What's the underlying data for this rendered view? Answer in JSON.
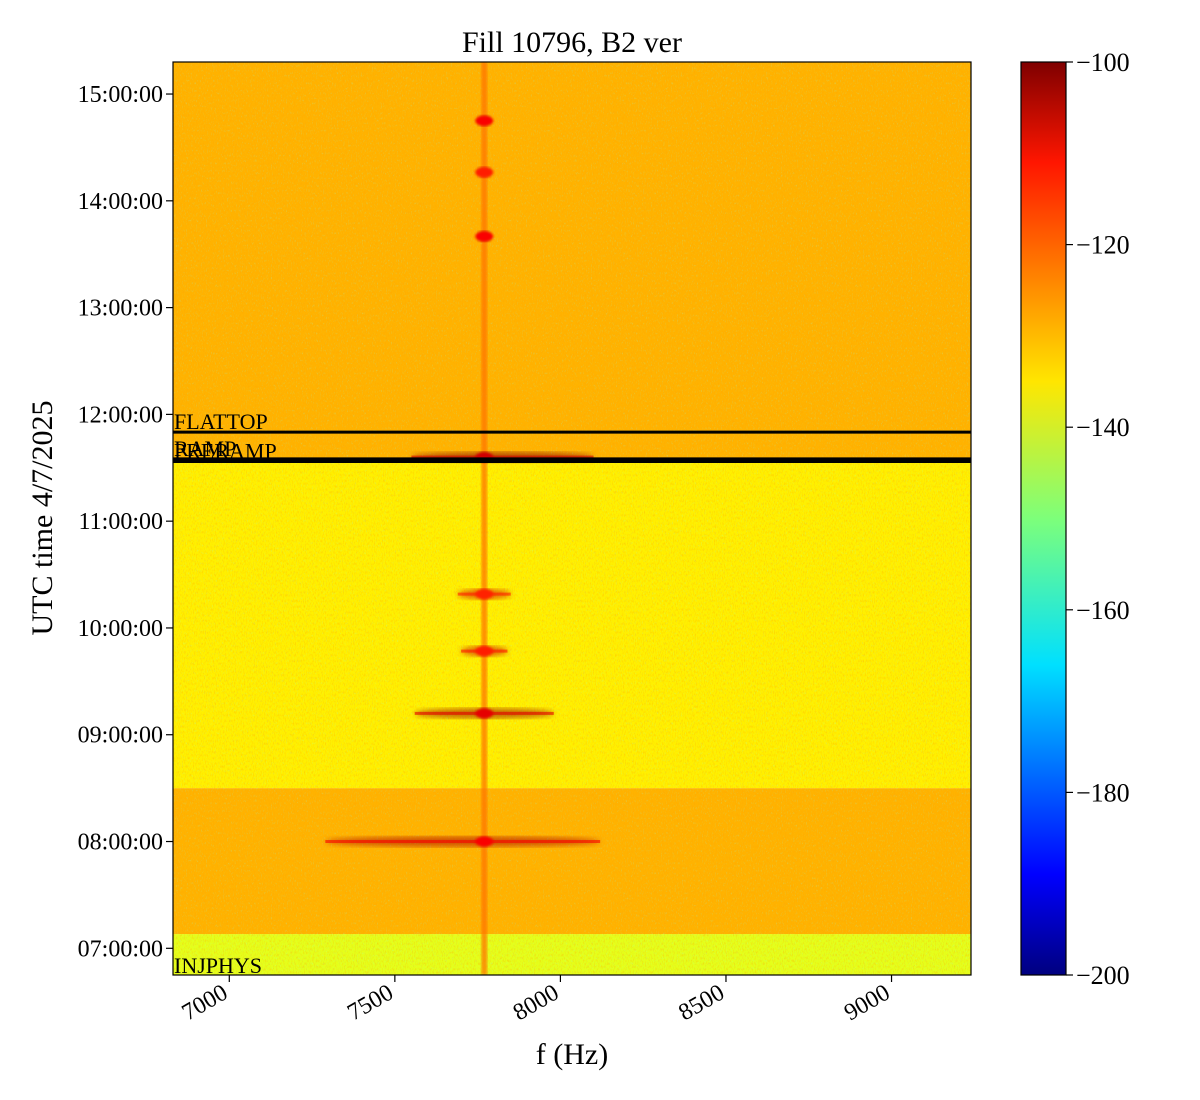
{
  "chart_data": {
    "type": "heatmap",
    "title": "Fill 10796, B2 ver",
    "xlabel": "f (Hz)",
    "ylabel": "UTC time 4/7/2025",
    "xlim": [
      6830,
      9240
    ],
    "x_ticks": [
      7000,
      7500,
      8000,
      8500,
      9000
    ],
    "x_tick_labels": [
      "7000",
      "7500",
      "8000",
      "8500",
      "9000"
    ],
    "ylim": [
      "06:45:00",
      "15:18:00"
    ],
    "y_ticks": [
      "07:00:00",
      "08:00:00",
      "09:00:00",
      "10:00:00",
      "11:00:00",
      "12:00:00",
      "13:00:00",
      "14:00:00",
      "15:00:00"
    ],
    "colorbar": {
      "range": [
        -200,
        -100
      ],
      "ticks": [
        -100,
        -120,
        -140,
        -160,
        -180,
        -200
      ],
      "tick_labels": [
        "−100",
        "−120",
        "−140",
        "−160",
        "−180",
        "−200"
      ],
      "colormap": "jet"
    },
    "background_levels": [
      {
        "from": "06:45:00",
        "to": "07:08:00",
        "level": -140
      },
      {
        "from": "07:08:00",
        "to": "08:30:00",
        "level": -130
      },
      {
        "from": "08:30:00",
        "to": "11:33:00",
        "level": -136
      },
      {
        "from": "11:33:00",
        "to": "15:18:00",
        "level": -130
      }
    ],
    "spectral_line": {
      "f": 7770,
      "level": -124
    },
    "bursts": [
      {
        "time": "08:00:00",
        "f_center": 7770,
        "f_span": [
          7290,
          8120
        ],
        "level": -112
      },
      {
        "time": "09:12:00",
        "f_center": 7770,
        "f_span": [
          7560,
          7980
        ],
        "level": -110
      },
      {
        "time": "09:47:00",
        "f_center": 7770,
        "f_span": [
          7700,
          7840
        ],
        "level": -115
      },
      {
        "time": "10:19:00",
        "f_center": 7770,
        "f_span": [
          7690,
          7850
        ],
        "level": -116
      },
      {
        "time": "11:36:00",
        "f_center": 7770,
        "f_span": [
          7550,
          8100
        ],
        "level": -108
      },
      {
        "time": "13:40:00",
        "f_center": 7770,
        "f_span": [
          7760,
          7780
        ],
        "level": -112
      },
      {
        "time": "14:16:00",
        "f_center": 7770,
        "f_span": [
          7760,
          7780
        ],
        "level": -115
      },
      {
        "time": "14:45:00",
        "f_center": 7770,
        "f_span": [
          7760,
          7780
        ],
        "level": -112
      }
    ],
    "annotations": [
      {
        "label": "FLATTOP",
        "time": "11:50:00",
        "line": true
      },
      {
        "label": "RAMP",
        "time": "11:35:00",
        "line": true
      },
      {
        "label": "PRERAMP",
        "time": "11:33:30",
        "line": true
      },
      {
        "label": "INJPHYS",
        "time": "06:45:00",
        "line": false
      }
    ]
  },
  "colors": {
    "line": "#000000",
    "text": "#000000"
  }
}
